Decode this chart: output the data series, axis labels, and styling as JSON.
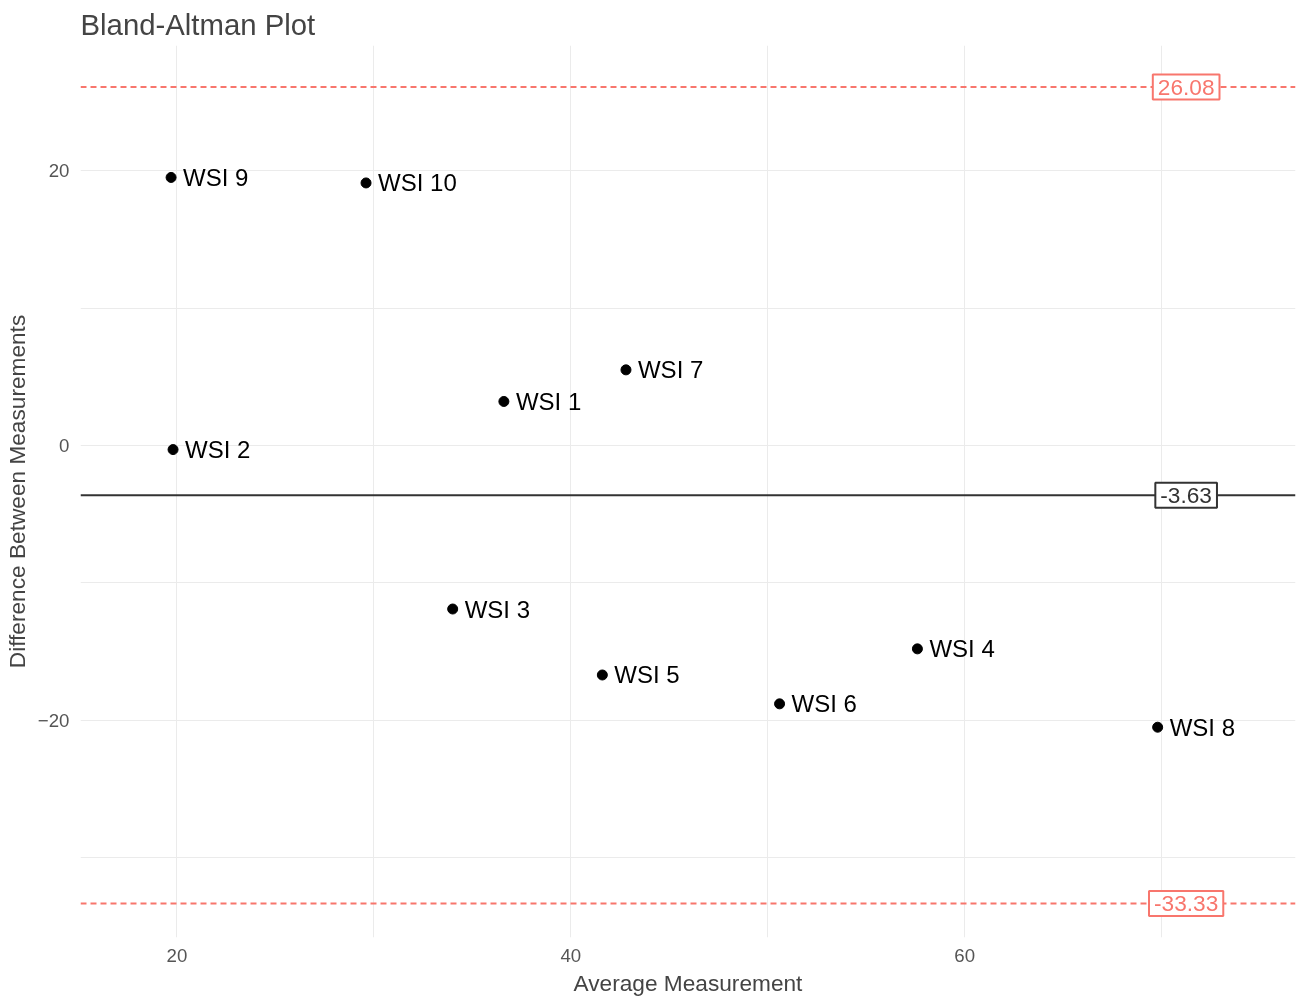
{
  "chart_data": {
    "type": "scatter",
    "title": "Bland-Altman Plot",
    "xlabel": "Average Measurement",
    "ylabel": "Difference Between Measurements",
    "x": [
      36.6,
      19.8,
      34.0,
      57.6,
      41.6,
      50.6,
      42.8,
      69.8,
      19.7,
      29.6
    ],
    "series": [
      {
        "color": "#000000",
        "values": [
          3.2,
          -0.3,
          -11.9,
          -14.8,
          -16.7,
          -18.8,
          5.5,
          -20.5,
          19.5,
          19.1
        ]
      }
    ],
    "marker": "circle",
    "grid": true,
    "xlim": [
      15.1,
      76.8
    ],
    "ylim": [
      -35.8,
      29.1
    ],
    "xticks": [
      20,
      {
        "value": 30,
        "label": null
      },
      40,
      {
        "value": 50,
        "label": null
      },
      60,
      {
        "value": 70,
        "label": null
      }
    ],
    "yticks": [
      {
        "value": -30,
        "label": null
      },
      -20,
      {
        "value": -10,
        "label": null
      },
      0,
      {
        "value": 10,
        "label": null
      },
      20
    ],
    "ref_lines": [
      {
        "axis": "y",
        "value": 26.08,
        "label": "26.08",
        "color": "#f8766d",
        "line_style": "dashed"
      },
      {
        "axis": "y",
        "value": -3.63,
        "label": "-3.63",
        "color": "#333333",
        "line_style": "solid"
      },
      {
        "axis": "y",
        "value": -33.33,
        "label": "-33.33",
        "color": "#f8766d",
        "line_style": "dashed"
      }
    ],
    "annotations": [
      {
        "text": "WSI 1",
        "x": 36.6,
        "y": 3.2
      },
      {
        "text": "WSI 2",
        "x": 19.8,
        "y": -0.3
      },
      {
        "text": "WSI 3",
        "x": 34.0,
        "y": -11.9
      },
      {
        "text": "WSI 4",
        "x": 57.6,
        "y": -14.8
      },
      {
        "text": "WSI 5",
        "x": 41.6,
        "y": -16.7
      },
      {
        "text": "WSI 6",
        "x": 50.6,
        "y": -18.8
      },
      {
        "text": "WSI 7",
        "x": 42.8,
        "y": 5.5
      },
      {
        "text": "WSI 8",
        "x": 69.8,
        "y": -20.5
      },
      {
        "text": "WSI 9",
        "x": 19.7,
        "y": 19.5
      },
      {
        "text": "WSI 10",
        "x": 29.6,
        "y": 19.1
      }
    ]
  }
}
